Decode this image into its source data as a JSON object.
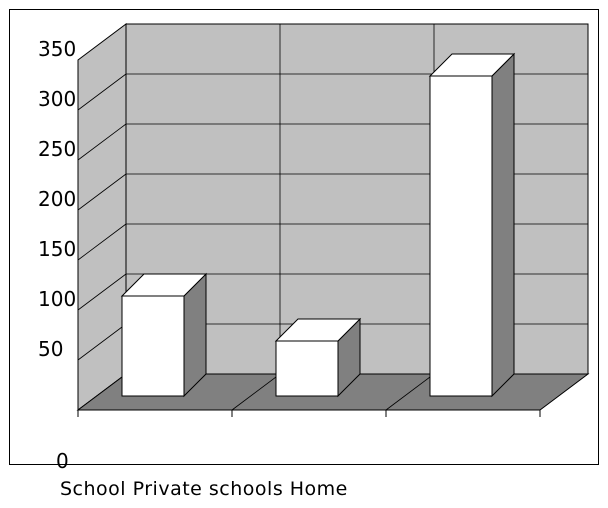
{
  "chart_data": {
    "type": "bar",
    "title": "",
    "xlabel": "",
    "ylabel": "",
    "categories": [
      "School",
      "Private schools",
      "Home"
    ],
    "values": [
      100,
      55,
      320
    ],
    "ylim": [
      0,
      350
    ],
    "y_ticks": [
      "0",
      "50",
      "100",
      "150",
      "200",
      "250",
      "300",
      "350"
    ],
    "grid": true,
    "legend": "none",
    "style": "3d-column"
  },
  "colors": {
    "wall": "#c0c0c0",
    "floor": "#808080",
    "bar_front": "#ffffff",
    "bar_side": "#808080",
    "bar_top": "#ffffff",
    "outline": "#000000"
  }
}
